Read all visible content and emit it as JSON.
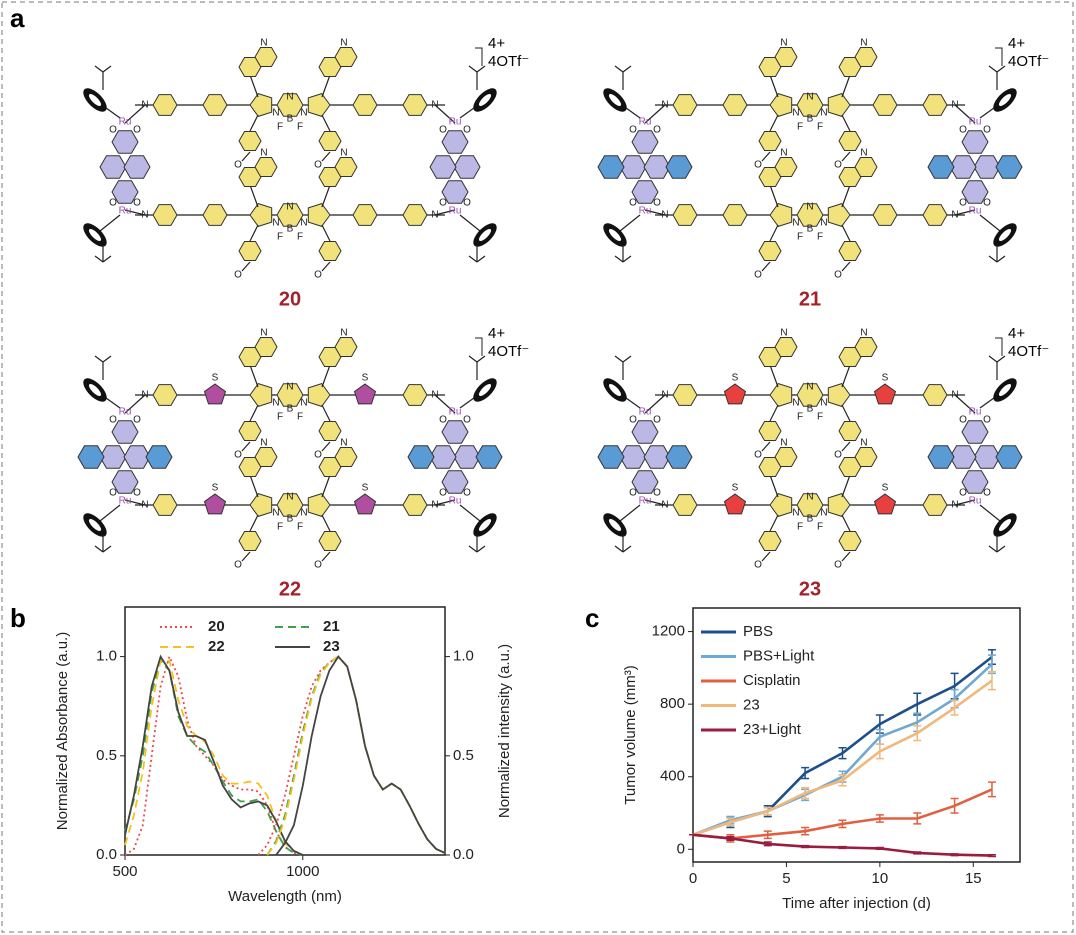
{
  "panel_labels": [
    "a",
    "b",
    "c"
  ],
  "atoms": {
    "N": "N",
    "B": "B",
    "F": "F",
    "Ru": "Ru",
    "O": "O",
    "S": "S"
  },
  "structures": [
    {
      "label": "20",
      "charge": "4+",
      "counterion": "4OTf⁻"
    },
    {
      "label": "21",
      "charge": "4+",
      "counterion": "4OTf⁻"
    },
    {
      "label": "22",
      "charge": "4+",
      "counterion": "4OTf⁻"
    },
    {
      "label": "23",
      "charge": "4+",
      "counterion": "4OTf⁻"
    }
  ],
  "chart_data": [
    {
      "type": "line",
      "xlabel": "Wavelength (nm)",
      "ylabel": "Normalized Absorbance (a.u.)",
      "y2label": "Normalized intensity (a.u.)",
      "x": [
        500,
        525,
        550,
        575,
        600,
        625,
        650,
        675,
        700,
        725,
        750,
        775,
        800,
        825,
        850,
        875,
        900,
        925,
        950,
        975,
        1000,
        1025,
        1050,
        1075,
        1100,
        1125,
        1150,
        1175,
        1200,
        1225,
        1250,
        1275,
        1300,
        1325,
        1350,
        1375,
        1400
      ],
      "xlim": [
        500,
        1400
      ],
      "xticks": [
        500,
        1000
      ],
      "ylim": [
        0,
        1.25
      ],
      "yticks": [
        {
          "value": 0,
          "label": "0.0"
        },
        {
          "value": 0.5,
          "label": "0.5"
        },
        {
          "value": 1,
          "label": "1.0"
        }
      ],
      "y2lim": [
        0,
        1.25
      ],
      "y2ticks": [
        {
          "value": 0,
          "label": "0.0"
        },
        {
          "value": 0.5,
          "label": "0.5"
        },
        {
          "value": 1,
          "label": "1.0"
        }
      ],
      "legend": {
        "position": "top",
        "columns": 2
      },
      "series": [
        {
          "name": "20",
          "color": "#f0474f",
          "linestyle": "dotted",
          "values": [
            0.0,
            0.03,
            0.15,
            0.5,
            0.85,
            1.0,
            0.9,
            0.68,
            0.55,
            0.5,
            0.45,
            0.38,
            0.35,
            0.33,
            0.33,
            0.32,
            0.25,
            0.12,
            0.04,
            0.01,
            0.0,
            null,
            null,
            null,
            null,
            null,
            null,
            null,
            null,
            null,
            null,
            null,
            null,
            null,
            null,
            null,
            null
          ]
        },
        {
          "name": "21",
          "color": "#3fa04a",
          "linestyle": "dashed",
          "values": [
            0.12,
            0.28,
            0.5,
            0.82,
            0.98,
            0.93,
            0.7,
            0.6,
            0.55,
            0.52,
            0.45,
            0.37,
            0.3,
            0.27,
            0.27,
            0.28,
            0.22,
            0.12,
            0.04,
            0.01,
            0.0,
            null,
            null,
            null,
            null,
            null,
            null,
            null,
            null,
            null,
            null,
            null,
            null,
            null,
            null,
            null,
            null
          ]
        },
        {
          "name": "22",
          "color": "#f2c31c",
          "linestyle": "dashed",
          "values": [
            0.05,
            0.2,
            0.42,
            0.75,
            0.98,
            0.98,
            0.78,
            0.65,
            0.6,
            0.57,
            0.5,
            0.4,
            0.36,
            0.36,
            0.37,
            0.36,
            0.3,
            0.17,
            0.06,
            0.02,
            0.0,
            null,
            null,
            null,
            null,
            null,
            null,
            null,
            null,
            null,
            null,
            null,
            null,
            null,
            null,
            null,
            null
          ]
        },
        {
          "name": "23",
          "color": "#444444",
          "linestyle": "solid",
          "values": [
            0.1,
            0.3,
            0.55,
            0.85,
            1.0,
            0.93,
            0.72,
            0.6,
            0.6,
            0.58,
            0.47,
            0.35,
            0.28,
            0.24,
            0.26,
            0.27,
            0.25,
            0.17,
            0.07,
            0.02,
            0.0,
            null,
            null,
            null,
            null,
            null,
            null,
            null,
            null,
            null,
            null,
            null,
            null,
            null,
            null,
            null,
            null
          ]
        },
        {
          "axis": "y2",
          "color": "#f0474f",
          "linestyle": "dotted",
          "values": [
            null,
            null,
            null,
            null,
            null,
            null,
            null,
            null,
            null,
            null,
            null,
            null,
            null,
            null,
            null,
            0.0,
            0.05,
            0.15,
            0.3,
            0.5,
            0.7,
            0.85,
            0.93,
            0.97,
            1.0,
            0.95,
            0.78,
            0.55,
            0.4,
            0.33,
            0.36,
            0.33,
            0.25,
            0.16,
            0.08,
            0.03,
            0.01
          ]
        },
        {
          "axis": "y2",
          "color": "#3fa04a",
          "linestyle": "dashed",
          "values": [
            null,
            null,
            null,
            null,
            null,
            null,
            null,
            null,
            null,
            null,
            null,
            null,
            null,
            null,
            null,
            null,
            0.0,
            0.07,
            0.2,
            0.4,
            0.62,
            0.8,
            0.92,
            0.97,
            1.0,
            0.95,
            0.78,
            0.55,
            0.4,
            0.33,
            0.36,
            0.33,
            0.25,
            0.16,
            0.08,
            0.03,
            0.01
          ]
        },
        {
          "axis": "y2",
          "color": "#f2c31c",
          "linestyle": "dashed",
          "values": [
            null,
            null,
            null,
            null,
            null,
            null,
            null,
            null,
            null,
            null,
            null,
            null,
            null,
            null,
            null,
            null,
            0.0,
            0.06,
            0.18,
            0.38,
            0.6,
            0.79,
            0.91,
            0.97,
            1.0,
            0.95,
            0.78,
            0.55,
            0.4,
            0.33,
            0.36,
            0.33,
            0.25,
            0.16,
            0.08,
            0.03,
            0.01
          ]
        },
        {
          "axis": "y2",
          "color": "#444444",
          "linestyle": "solid",
          "values": [
            null,
            null,
            null,
            null,
            null,
            null,
            null,
            null,
            null,
            null,
            null,
            null,
            null,
            null,
            null,
            null,
            null,
            0.0,
            0.06,
            0.15,
            0.35,
            0.6,
            0.8,
            0.93,
            1.0,
            0.95,
            0.78,
            0.55,
            0.4,
            0.33,
            0.36,
            0.33,
            0.25,
            0.16,
            0.08,
            0.03,
            0.01
          ]
        }
      ]
    },
    {
      "type": "line",
      "xlabel": "Time after injection (d)",
      "ylabel": "Tumor volume (mm³)",
      "x": [
        0,
        2,
        4,
        6,
        8,
        10,
        12,
        14,
        16
      ],
      "xlim": [
        0,
        17.5
      ],
      "xticks": [
        0,
        5,
        10,
        15
      ],
      "ylim": [
        -70,
        1330
      ],
      "yticks": [
        0,
        400,
        800,
        1200
      ],
      "legend": {
        "position": "upper left",
        "columns": 1
      },
      "series": [
        {
          "name": "PBS",
          "color": "#1f4e8c",
          "values": [
            80,
            150,
            210,
            420,
            530,
            690,
            800,
            900,
            1060
          ],
          "errors": [
            0,
            30,
            30,
            30,
            30,
            50,
            60,
            70,
            40
          ]
        },
        {
          "name": "PBS+Light",
          "color": "#6fa8d0",
          "values": [
            80,
            160,
            210,
            300,
            400,
            620,
            700,
            830,
            1020
          ],
          "errors": [
            0,
            20,
            20,
            30,
            30,
            40,
            50,
            50,
            50
          ]
        },
        {
          "name": "Cisplatin",
          "color": "#e06040",
          "values": [
            80,
            60,
            80,
            100,
            140,
            170,
            170,
            240,
            330
          ],
          "errors": [
            0,
            20,
            20,
            20,
            20,
            20,
            30,
            40,
            40
          ]
        },
        {
          "name": "23",
          "color": "#f0b87a",
          "values": [
            80,
            150,
            210,
            310,
            380,
            540,
            640,
            780,
            930
          ],
          "errors": [
            0,
            20,
            20,
            30,
            30,
            40,
            40,
            40,
            50
          ]
        },
        {
          "name": "23+Light",
          "color": "#9a1d40",
          "values": [
            80,
            60,
            30,
            15,
            10,
            5,
            -20,
            -30,
            -35
          ],
          "errors": [
            0,
            10,
            10,
            5,
            5,
            5,
            5,
            5,
            5
          ]
        }
      ]
    }
  ]
}
